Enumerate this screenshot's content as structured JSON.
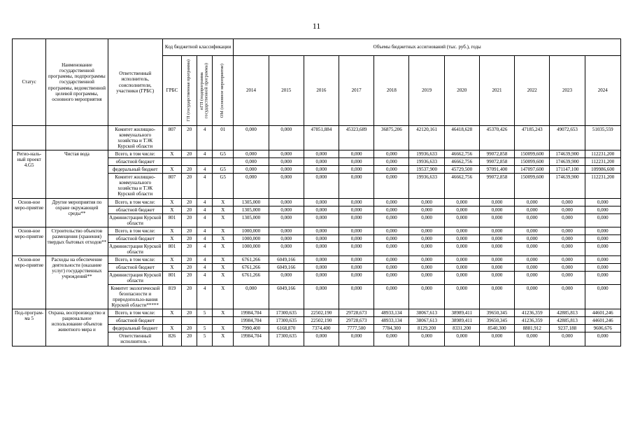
{
  "page": {
    "number": "11"
  },
  "table": {
    "headers": {
      "status": "Статус",
      "name": "Наименование государственной программы, подпрограммы государственной программы, ведомственной целевой программы, основного мероприятия",
      "executor": "Ответственный исполнитель, соисполнители, участники (ГРБС)",
      "budget_code": "Код бюджетной классификации",
      "grbs": "ГРБС",
      "gp": "ГП (государственная программа)",
      "pgp": "пГП (подпрограмма государственной программы)",
      "om": "ОМ (основное мероприятие)",
      "volumes": "Объемы бюджетных ассигнований (тыс. руб.), годы",
      "years": [
        "2014",
        "2015",
        "2016",
        "2017",
        "2018",
        "2019",
        "2020",
        "2021",
        "2022",
        "2023",
        "2024"
      ]
    },
    "groups": [
      {
        "status": "",
        "name": "",
        "rows": [
          {
            "executor": "Комитет жилищно-коммунального хозяйства и ТЭК Курской области",
            "grbs": "807",
            "gp": "20",
            "pgp": "4",
            "om": "01",
            "values": [
              "0,000",
              "0,000",
              "47851,884",
              "45323,689",
              "36875,206",
              "42120,161",
              "46418,628",
              "45370,426",
              "47185,243",
              "49072,653",
              "51035,559"
            ]
          }
        ]
      },
      {
        "status": "Регио-наль-ный проект 4.G5",
        "name": "Чистая вода",
        "rows": [
          {
            "executor": "Всего, в том числе:",
            "grbs": "X",
            "gp": "20",
            "pgp": "4",
            "om": "G5",
            "values": [
              "0,000",
              "0,000",
              "0,000",
              "0,000",
              "0,000",
              "19936,633",
              "46662,756",
              "99072,858",
              "150099,600",
              "174639,900",
              "112231,200"
            ]
          },
          {
            "executor": "областной бюджет",
            "grbs": "",
            "gp": "",
            "pgp": "",
            "om": "",
            "values": [
              "0,000",
              "0,000",
              "0,000",
              "0,000",
              "0,000",
              "19936,633",
              "46662,756",
              "99072,858",
              "150099,600",
              "174639,900",
              "112231,200"
            ]
          },
          {
            "executor": "федеральный бюджет",
            "grbs": "X",
            "gp": "20",
            "pgp": "4",
            "om": "G5",
            "values": [
              "0,000",
              "0,000",
              "0,000",
              "0,000",
              "0,000",
              "19537,900",
              "45729,500",
              "97091,400",
              "147097,600",
              "171147,100",
              "109986,600"
            ]
          },
          {
            "executor": "Комитет жилищно-коммунального хозяйства и ТЭК Курской области",
            "grbs": "807",
            "gp": "20",
            "pgp": "4",
            "om": "G5",
            "values": [
              "0,000",
              "0,000",
              "0,000",
              "0,000",
              "0,000",
              "19936,633",
              "46662,756",
              "99072,858",
              "150099,600",
              "174639,900",
              "112231,200"
            ]
          }
        ]
      },
      {
        "status": "Основ-ное меро-приятие",
        "name": "Другие мероприятия по охране окружающей среды**",
        "rows": [
          {
            "executor": "Всего, в том числе:",
            "grbs": "X",
            "gp": "20",
            "pgp": "4",
            "om": "X",
            "values": [
              "1305,000",
              "0,000",
              "0,000",
              "0,000",
              "0,000",
              "0,000",
              "0,000",
              "0,000",
              "0,000",
              "0,000",
              "0,000"
            ]
          },
          {
            "executor": "областной бюджет",
            "grbs": "X",
            "gp": "20",
            "pgp": "4",
            "om": "X",
            "values": [
              "1305,000",
              "0,000",
              "0,000",
              "0,000",
              "0,000",
              "0,000",
              "0,000",
              "0,000",
              "0,000",
              "0,000",
              "0,000"
            ]
          },
          {
            "executor": "Администрация Курской области",
            "grbs": "801",
            "gp": "20",
            "pgp": "4",
            "om": "X",
            "values": [
              "1305,000",
              "0,000",
              "0,000",
              "0,000",
              "0,000",
              "0,000",
              "0,000",
              "0,000",
              "0,000",
              "0,000",
              "0,000"
            ]
          }
        ]
      },
      {
        "status": "Основ-ное меро-приятие",
        "name": "Строительство объектов размещения (хранения) твердых бытовых отходов**",
        "rows": [
          {
            "executor": "Всего, в том числе:",
            "grbs": "X",
            "gp": "20",
            "pgp": "4",
            "om": "X",
            "values": [
              "1000,000",
              "0,000",
              "0,000",
              "0,000",
              "0,000",
              "0,000",
              "0,000",
              "0,000",
              "0,000",
              "0,000",
              "0,000"
            ]
          },
          {
            "executor": "областной бюджет",
            "grbs": "X",
            "gp": "20",
            "pgp": "4",
            "om": "X",
            "values": [
              "1000,000",
              "0,000",
              "0,000",
              "0,000",
              "0,000",
              "0,000",
              "0,000",
              "0,000",
              "0,000",
              "0,000",
              "0,000"
            ]
          },
          {
            "executor": "Администрация Курской области",
            "grbs": "801",
            "gp": "20",
            "pgp": "4",
            "om": "X",
            "values": [
              "1000,000",
              "0,000",
              "0,000",
              "0,000",
              "0,000",
              "0,000",
              "0,000",
              "0,000",
              "0,000",
              "0,000",
              "0,000"
            ]
          }
        ]
      },
      {
        "status": "Основ-ное меро-приятие",
        "name": "Расходы на обеспечение деятельности (оказание услуг) государственных учреждений**",
        "rows": [
          {
            "executor": "Всего, в том числе:",
            "grbs": "X",
            "gp": "20",
            "pgp": "4",
            "om": "X",
            "values": [
              "6761,266",
              "6049,166",
              "0,000",
              "0,000",
              "0,000",
              "0,000",
              "0,000",
              "0,000",
              "0,000",
              "0,000",
              "0,000"
            ]
          },
          {
            "executor": "областной бюджет",
            "grbs": "X",
            "gp": "20",
            "pgp": "4",
            "om": "X",
            "values": [
              "6761,266",
              "6049,166",
              "0,000",
              "0,000",
              "0,000",
              "0,000",
              "0,000",
              "0,000",
              "0,000",
              "0,000",
              "0,000"
            ]
          },
          {
            "executor": "Администрация Курской области",
            "grbs": "801",
            "gp": "20",
            "pgp": "4",
            "om": "X",
            "values": [
              "6761,266",
              "0,000",
              "0,000",
              "0,000",
              "0,000",
              "0,000",
              "0,000",
              "0,000",
              "0,000",
              "0,000",
              "0,000"
            ]
          },
          {
            "executor": "Комитет экологической безопасности и природопользо-вания Курской области*****",
            "grbs": "819",
            "gp": "20",
            "pgp": "4",
            "om": "X",
            "values": [
              "0,000",
              "6049,166",
              "0,000",
              "0,000",
              "0,000",
              "0,000",
              "0,000",
              "0,000",
              "0,000",
              "0,000",
              "0,000"
            ]
          }
        ]
      },
      {
        "status": "Под-програм-ма 5",
        "name": "Охрана, воспроизводство и рациональное использование объектов животного мира и",
        "rows": [
          {
            "executor": "Всего, в том числе:",
            "grbs": "X",
            "gp": "20",
            "pgp": "5",
            "om": "X",
            "values": [
              "19984,704",
              "17300,635",
              "22502,190",
              "29728,673",
              "48933,134",
              "38067,613",
              "38989,411",
              "39650,345",
              "41236,359",
              "42885,813",
              "44601,246"
            ]
          },
          {
            "executor": "областной бюджет",
            "grbs": "",
            "gp": "",
            "pgp": "",
            "om": "",
            "values": [
              "19984,704",
              "17300,635",
              "22502,190",
              "29728,673",
              "48933,134",
              "38067,613",
              "38989,411",
              "39650,345",
              "41236,359",
              "42885,813",
              "44601,246"
            ]
          },
          {
            "executor": "федеральный бюджет",
            "grbs": "X",
            "gp": "20",
            "pgp": "5",
            "om": "X",
            "values": [
              "7990,400",
              "6168,870",
              "7374,400",
              "7777,500",
              "7784,300",
              "8129,200",
              "8331,200",
              "8540,300",
              "8881,912",
              "9237,188",
              "9606,676"
            ]
          },
          {
            "executor": "Ответственный исполнитель -",
            "grbs": "826",
            "gp": "20",
            "pgp": "5",
            "om": "X",
            "values": [
              "19984,704",
              "17300,635",
              "0,000",
              "0,000",
              "0,000",
              "0,000",
              "0,000",
              "0,000",
              "0,000",
              "0,000",
              "0,000"
            ]
          }
        ]
      }
    ]
  }
}
